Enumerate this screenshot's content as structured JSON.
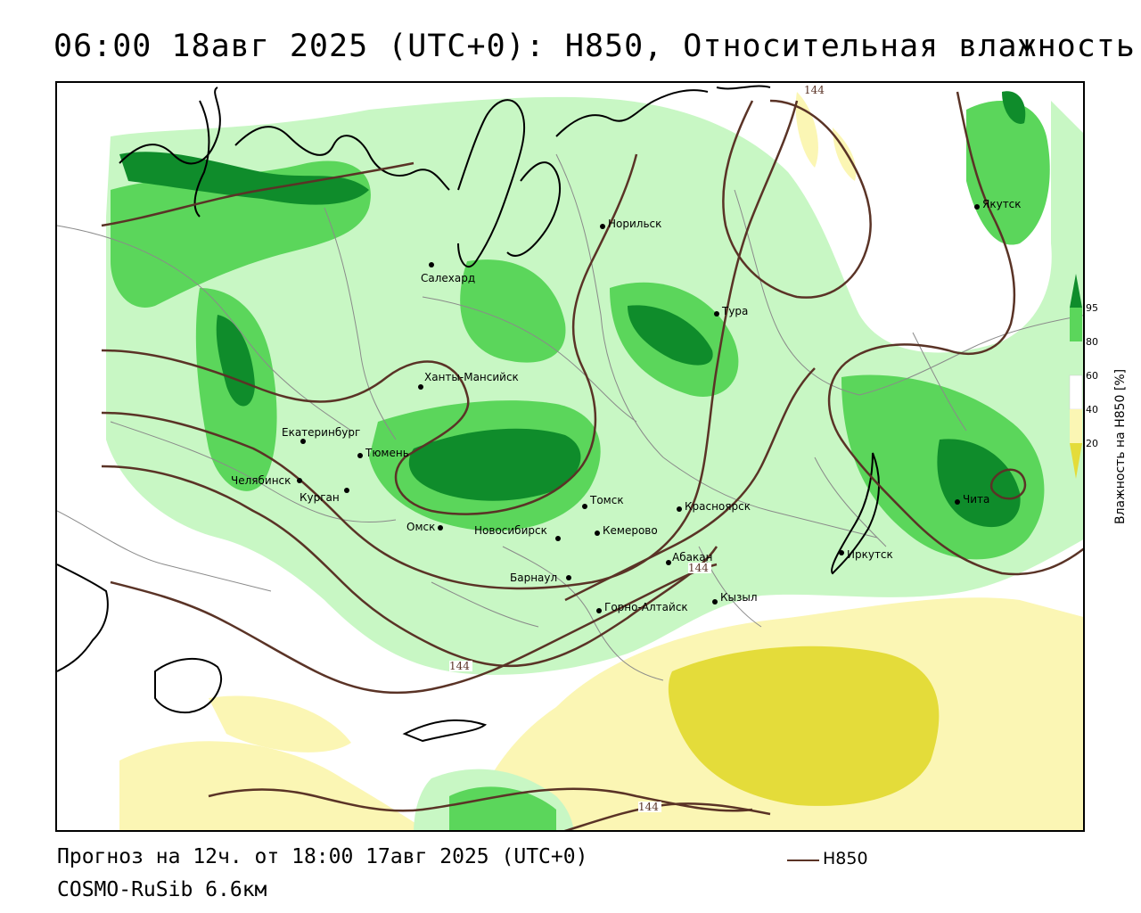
{
  "header": {
    "title": "06:00 18авг 2025 (UTC+0): H850, Относительная влажность"
  },
  "map": {
    "cities": [
      {
        "name": "Норильск",
        "lon": 88.2,
        "lat": 69.3
      },
      {
        "name": "Салехард",
        "lon": 66.6,
        "lat": 66.5
      },
      {
        "name": "Якутск",
        "lon": 129.7,
        "lat": 62.0
      },
      {
        "name": "Тура",
        "lon": 100.2,
        "lat": 64.3
      },
      {
        "name": "Ханты-Мансийск",
        "lon": 69.0,
        "lat": 61.0
      },
      {
        "name": "Екатеринбург",
        "lon": 60.6,
        "lat": 56.8
      },
      {
        "name": "Тюмень",
        "lon": 65.5,
        "lat": 57.1
      },
      {
        "name": "Челябинск",
        "lon": 61.4,
        "lat": 55.2
      },
      {
        "name": "Курган",
        "lon": 65.3,
        "lat": 55.4
      },
      {
        "name": "Омск",
        "lon": 73.4,
        "lat": 55.0
      },
      {
        "name": "Новосибирск",
        "lon": 82.9,
        "lat": 55.0
      },
      {
        "name": "Томск",
        "lon": 85.0,
        "lat": 56.5
      },
      {
        "name": "Кемерово",
        "lon": 86.1,
        "lat": 55.4
      },
      {
        "name": "Красноярск",
        "lon": 92.9,
        "lat": 56.0
      },
      {
        "name": "Барнаул",
        "lon": 83.8,
        "lat": 53.3
      },
      {
        "name": "Абакан",
        "lon": 91.4,
        "lat": 53.7
      },
      {
        "name": "Иркутск",
        "lon": 104.3,
        "lat": 52.3
      },
      {
        "name": "Чита",
        "lon": 113.5,
        "lat": 52.0
      },
      {
        "name": "Горно-Алтайск",
        "lon": 85.9,
        "lat": 51.9
      },
      {
        "name": "Кызыл",
        "lon": 94.4,
        "lat": 51.7
      }
    ],
    "contour_labels": [
      "144",
      "144",
      "144",
      "144"
    ],
    "colors": {
      "rh_20": "#e4dc3a",
      "rh_40": "#fbf6b4",
      "rh_60": "#c8f7c4",
      "rh_80": "#5bd65b",
      "rh_95": "#0f8c2b",
      "contour": "#5a3326",
      "coast": "#000000",
      "borders": "#8a8a8a"
    }
  },
  "legend": {
    "ticks": [
      "95",
      "80",
      "60",
      "40",
      "20"
    ],
    "title": "Влажность на H850 [%]"
  },
  "footer": {
    "forecast": "Прогноз на 12ч. от 18:00 17авг 2025 (UTC+0)",
    "model": "COSMO-RuSib 6.6км",
    "isoline_key": "H850"
  }
}
